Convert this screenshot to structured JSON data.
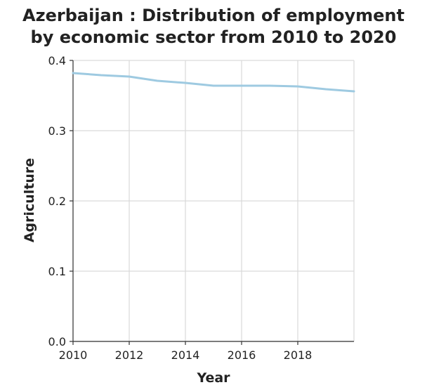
{
  "chart_data": {
    "type": "line",
    "title_lines": [
      "Azerbaijan : Distribution of employment",
      "by economic sector from 2010 to 2020"
    ],
    "xlabel": "Year",
    "ylabel": "Agriculture",
    "xlim": [
      2010,
      2020
    ],
    "ylim": [
      0,
      0.4
    ],
    "x_ticks": [
      2010,
      2012,
      2014,
      2016,
      2018
    ],
    "x_tick_labels": [
      "2010",
      "2012",
      "2014",
      "2016",
      "2018"
    ],
    "y_ticks": [
      0,
      0.1,
      0.2,
      0.3,
      0.4
    ],
    "y_tick_labels": [
      "0.0",
      "0.1",
      "0.2",
      "0.3",
      "0.4"
    ],
    "grid": true,
    "series": [
      {
        "color": "#9ecae1",
        "x": [
          2010,
          2011,
          2012,
          2013,
          2014,
          2015,
          2016,
          2017,
          2018,
          2019,
          2020
        ],
        "y": [
          0.382,
          0.379,
          0.377,
          0.371,
          0.368,
          0.364,
          0.364,
          0.364,
          0.363,
          0.359,
          0.356
        ]
      }
    ]
  }
}
